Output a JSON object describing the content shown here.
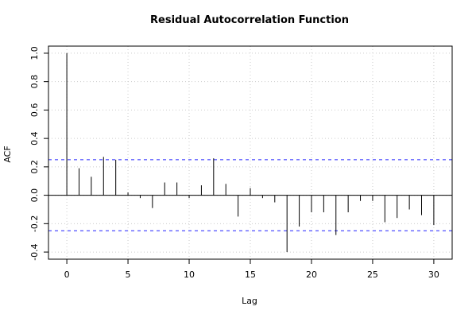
{
  "chart_data": {
    "type": "bar",
    "title": "Residual Autocorrelation Function",
    "xlabel": "Lag",
    "ylabel": "ACF",
    "xlim": [
      -1.5,
      31.5
    ],
    "ylim": [
      -0.45,
      1.05
    ],
    "grid": true,
    "x_ticks": [
      0,
      5,
      10,
      15,
      20,
      25,
      30
    ],
    "x_tick_labels": [
      "0",
      "5",
      "10",
      "15",
      "20",
      "25",
      "30"
    ],
    "y_ticks": [
      -0.4,
      -0.2,
      0.0,
      0.2,
      0.4,
      0.6,
      0.8,
      1.0
    ],
    "y_tick_labels": [
      "-0.4",
      "-0.2",
      "0.0",
      "0.2",
      "0.4",
      "0.6",
      "0.8",
      "1.0"
    ],
    "lags": [
      0,
      1,
      2,
      3,
      4,
      5,
      6,
      7,
      8,
      9,
      10,
      11,
      12,
      13,
      14,
      15,
      16,
      17,
      18,
      19,
      20,
      21,
      22,
      23,
      24,
      25,
      26,
      27,
      28,
      29,
      30
    ],
    "values": [
      1.0,
      0.19,
      0.13,
      0.27,
      0.25,
      0.02,
      -0.02,
      -0.09,
      0.09,
      0.09,
      -0.02,
      0.07,
      0.26,
      0.08,
      -0.15,
      0.05,
      -0.02,
      -0.05,
      -0.4,
      -0.22,
      -0.12,
      -0.12,
      -0.28,
      -0.12,
      -0.04,
      -0.04,
      -0.19,
      -0.16,
      -0.1,
      -0.14,
      -0.21
    ],
    "confidence_bounds": [
      0.25,
      -0.25
    ],
    "colors": {
      "bars": "#000000",
      "confidence": "#2222ff",
      "grid": "#cccccc"
    }
  }
}
